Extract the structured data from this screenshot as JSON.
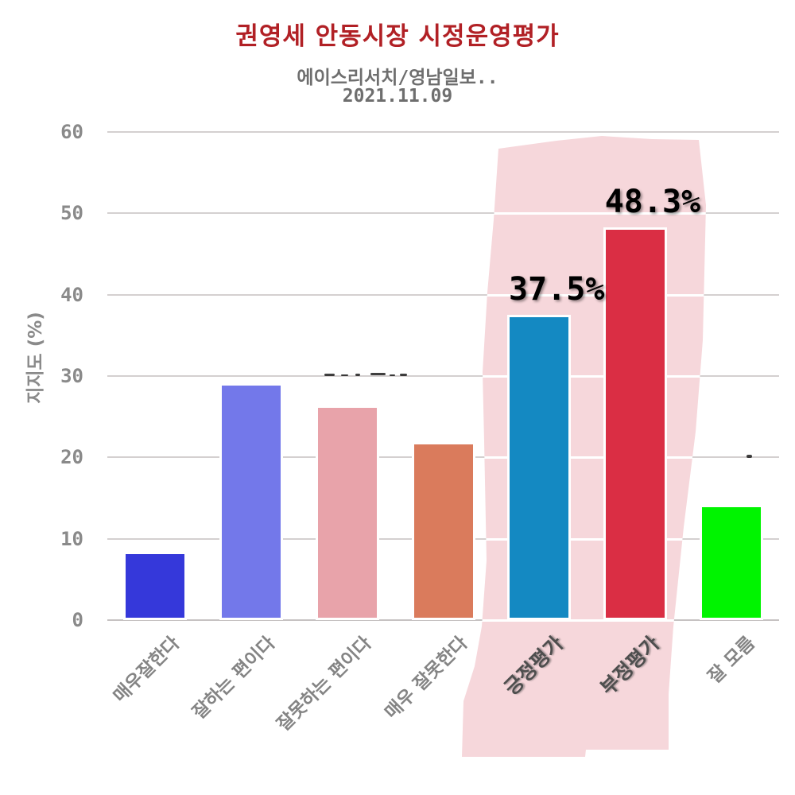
{
  "header": {
    "title": "권영세 안동시장 시정운영평가",
    "subtitle_line1": "에이스리서치/영남일보..",
    "subtitle_line2": "2021.11.09",
    "title_color": "#b12025",
    "subtitle_color": "#6e6e6e"
  },
  "chart_data": {
    "type": "bar",
    "title": "권영세 안동시장 시정운영평가",
    "subtitle": "에이스리서치/영남일보.. 2021.11.09",
    "ylabel": "지지도 (%)",
    "ylim": [
      0,
      60
    ],
    "yticks": [
      0,
      10,
      20,
      30,
      40,
      50,
      60
    ],
    "grid": true,
    "legend": "none",
    "categories": [
      "매우잘한다",
      "잘하는 편이다",
      "잘못하는 편이다",
      "매우 잘못한다",
      "긍정평가",
      "부정평가",
      "잘 모름"
    ],
    "values": [
      8.4,
      29.1,
      26.4,
      21.9,
      37.5,
      48.3,
      14.2
    ],
    "bar_colors": [
      "#3538da",
      "#7378ea",
      "#e8a3aa",
      "#da7b5c",
      "#1489c2",
      "#da2e44",
      "#00f400"
    ],
    "data_labels": [
      "",
      "",
      "",
      "",
      "37.5%",
      "48.3%",
      ""
    ],
    "highlight": {
      "categories": [
        "긍정평가",
        "부정평가"
      ],
      "color": "#f6d7db",
      "style": "irregular pink band behind bars"
    },
    "axis_text_color": "#8a8a8a",
    "gridline_color": "#d4d0d0"
  }
}
